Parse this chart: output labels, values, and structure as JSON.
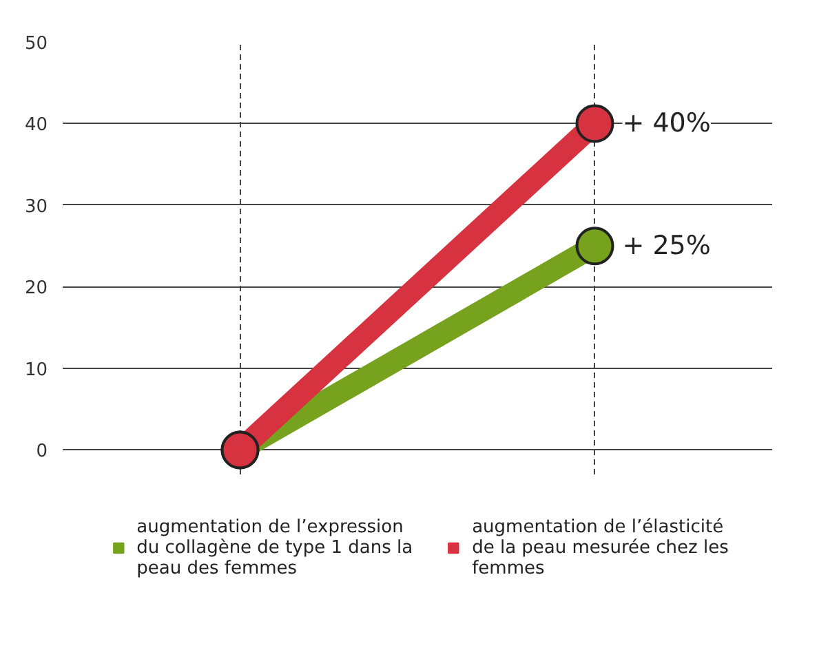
{
  "chart_data": {
    "type": "line",
    "categories": [
      null,
      null
    ],
    "series": [
      {
        "name": "augmentation de l’expression du collagène de type 1 dans la peau des femmes",
        "color": "#76a21e",
        "values": [
          0,
          25
        ],
        "value_labels": [
          null,
          "+ 25%"
        ]
      },
      {
        "name": "augmentation de l’élasticité de la peau mesurée chez les femmes",
        "color": "#d7323f",
        "values": [
          0,
          40
        ],
        "value_labels": [
          null,
          "+ 40%"
        ]
      }
    ],
    "ylim": [
      -3,
      50
    ],
    "yticks": [
      0,
      10,
      20,
      30,
      40,
      50
    ],
    "grid": true,
    "legend": "bottom",
    "marker": "circle",
    "line_style": "solid"
  }
}
